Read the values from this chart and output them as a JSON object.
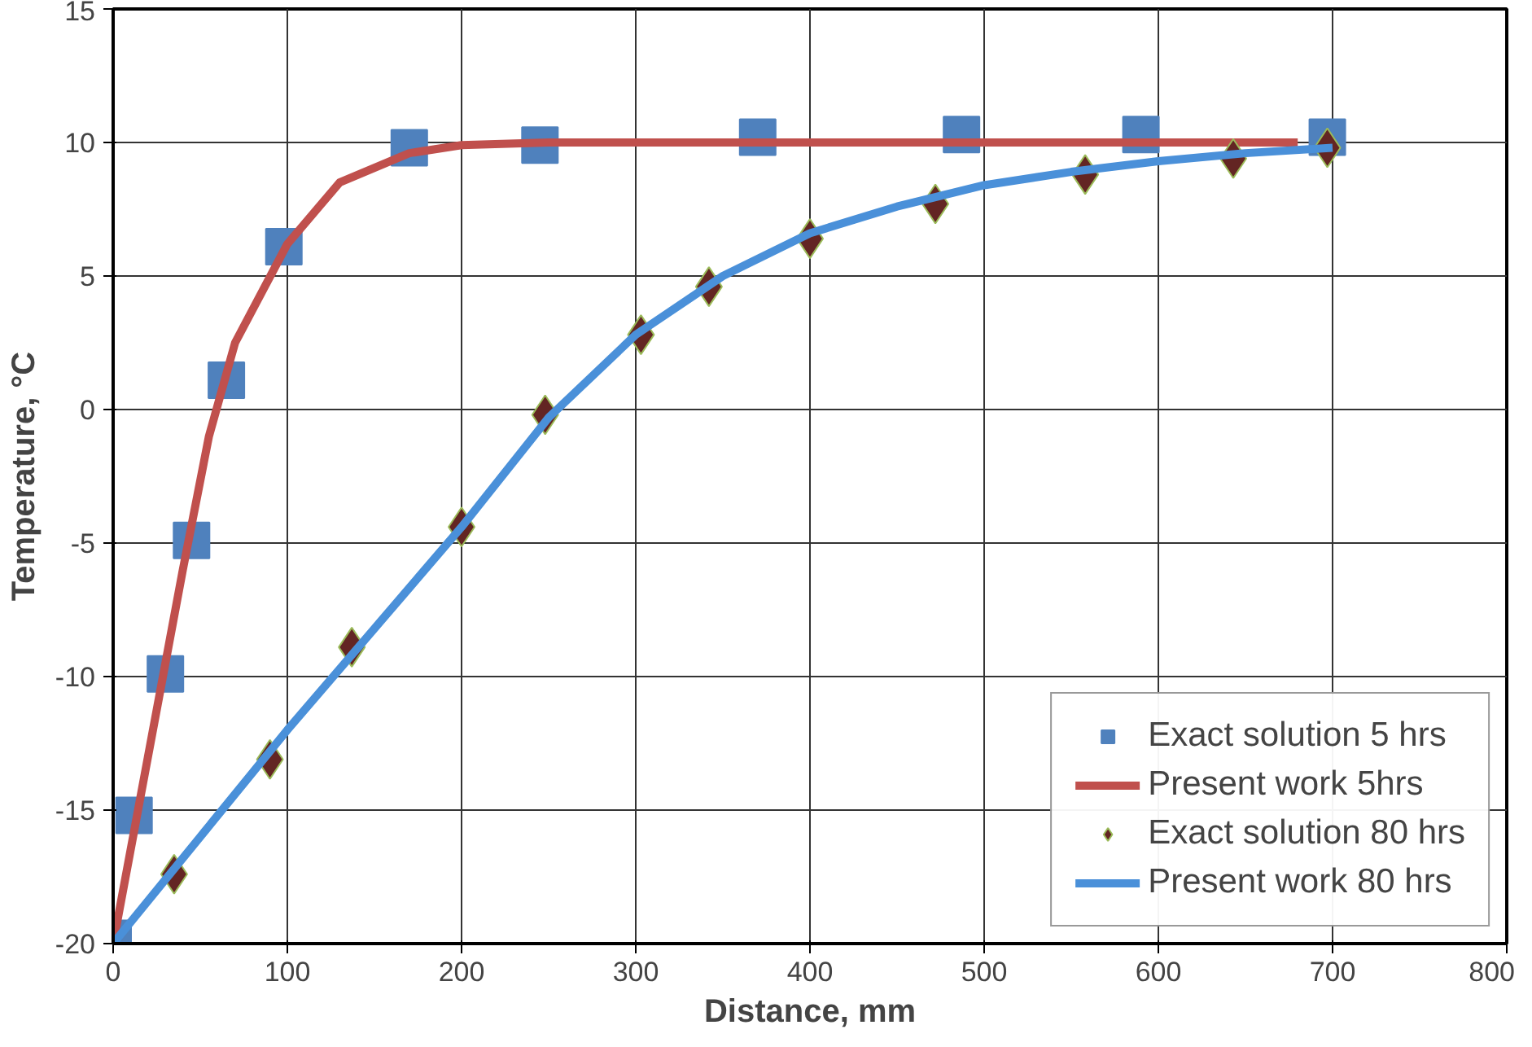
{
  "chart_data": {
    "type": "line",
    "xlabel": "Distance, mm",
    "ylabel": "Temperature, °C",
    "xlim": [
      0,
      800
    ],
    "xticks": [
      0,
      100,
      200,
      300,
      400,
      500,
      600,
      700,
      800
    ],
    "ylim": [
      -20,
      15
    ],
    "yticks": [
      -20,
      -15,
      -10,
      -5,
      0,
      5,
      10,
      15
    ],
    "grid": true,
    "legend": "bottom right",
    "series": [
      {
        "name": "Exact solution 5 hrs",
        "type": "scatter",
        "marker": "square",
        "color": "#4f81bd",
        "x": [
          0,
          12,
          30,
          45,
          65,
          98,
          170,
          245,
          370,
          487,
          590,
          697
        ],
        "values": [
          -19.8,
          -15.2,
          -9.9,
          -4.9,
          1.1,
          6.1,
          9.8,
          9.9,
          10.2,
          10.3,
          10.3,
          10.2
        ]
      },
      {
        "name": "Present work 5hrs",
        "marker": "none",
        "color": "#c0504d",
        "x": [
          0,
          20,
          40,
          55,
          70,
          100,
          130,
          170,
          200,
          250,
          680
        ],
        "values": [
          -20,
          -13,
          -6,
          -1,
          2.5,
          6.2,
          8.5,
          9.6,
          9.9,
          10,
          10
        ]
      },
      {
        "name": "Exact solution 80 hrs",
        "type": "scatter",
        "marker": "diamond",
        "color": "#632523",
        "x": [
          35,
          90,
          137,
          200,
          248,
          303,
          342,
          400,
          472,
          558,
          643,
          697
        ],
        "values": [
          -17.4,
          -13.1,
          -8.9,
          -4.4,
          -0.2,
          2.8,
          4.6,
          6.4,
          7.7,
          8.8,
          9.4,
          9.8
        ]
      },
      {
        "name": "Present work 80 hrs",
        "marker": "none",
        "color": "#4a90d9",
        "x": [
          0,
          50,
          100,
          150,
          200,
          250,
          300,
          350,
          400,
          450,
          500,
          550,
          600,
          650,
          700
        ],
        "values": [
          -20,
          -16,
          -12,
          -8.2,
          -4.4,
          -0.3,
          2.8,
          5,
          6.6,
          7.6,
          8.4,
          8.9,
          9.3,
          9.6,
          9.8
        ]
      }
    ]
  }
}
